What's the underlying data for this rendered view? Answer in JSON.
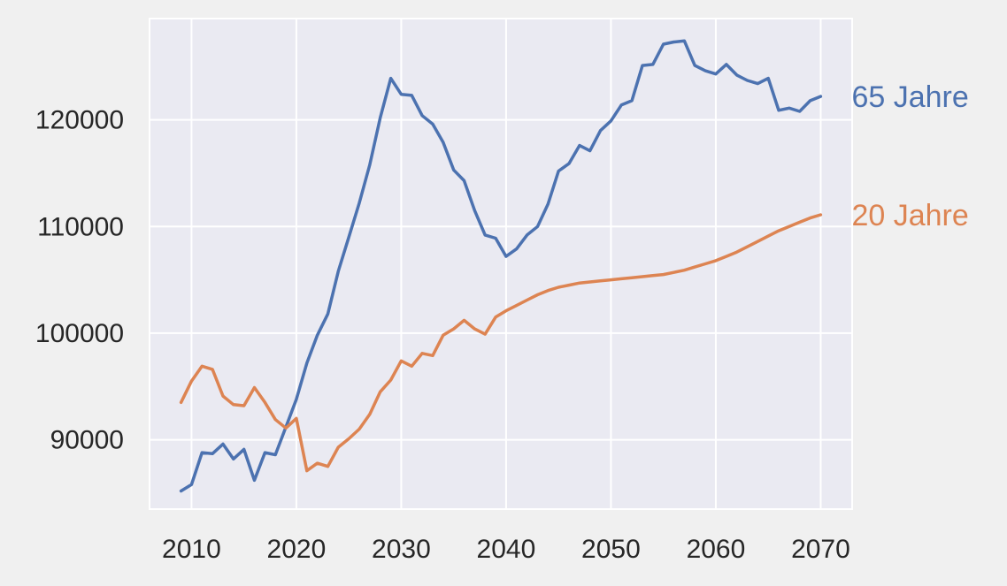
{
  "chart_data": {
    "type": "line",
    "title": "",
    "xlabel": "",
    "ylabel": "",
    "xlim": [
      2006,
      2073
    ],
    "ylim": [
      83500,
      129500
    ],
    "x_ticks": [
      2010,
      2020,
      2030,
      2040,
      2050,
      2060,
      2070
    ],
    "y_ticks": [
      90000,
      100000,
      110000,
      120000
    ],
    "x_tick_labels": [
      "2010",
      "2020",
      "2030",
      "2040",
      "2050",
      "2060",
      "2070"
    ],
    "y_tick_labels": [
      "90000",
      "100000",
      "110000",
      "120000"
    ],
    "grid": true,
    "colors": {
      "background": "#eaeaf2",
      "grid": "#ffffff",
      "page": "#f0f0f0"
    },
    "x": [
      2009,
      2010,
      2011,
      2012,
      2013,
      2014,
      2015,
      2016,
      2017,
      2018,
      2019,
      2020,
      2021,
      2022,
      2023,
      2024,
      2025,
      2026,
      2027,
      2028,
      2029,
      2030,
      2031,
      2032,
      2033,
      2034,
      2035,
      2036,
      2037,
      2038,
      2039,
      2040,
      2041,
      2042,
      2043,
      2044,
      2045,
      2046,
      2047,
      2048,
      2049,
      2050,
      2051,
      2052,
      2053,
      2054,
      2055,
      2056,
      2057,
      2058,
      2059,
      2060,
      2061,
      2062,
      2063,
      2064,
      2065,
      2066,
      2067,
      2068,
      2069,
      2070
    ],
    "series": [
      {
        "name": "65 Jahre",
        "color": "#4c72b0",
        "values": [
          85200,
          85800,
          88800,
          88700,
          89600,
          88200,
          89100,
          86200,
          88800,
          88600,
          91200,
          93800,
          97200,
          99800,
          101800,
          105800,
          109000,
          112200,
          115800,
          120200,
          123900,
          122400,
          122300,
          120400,
          119600,
          117900,
          115300,
          114300,
          111500,
          109200,
          108900,
          107200,
          107900,
          109200,
          110000,
          112100,
          115200,
          115900,
          117600,
          117100,
          119000,
          119900,
          121400,
          121800,
          125100,
          125200,
          127100,
          127300,
          127400,
          125100,
          124600,
          124300,
          125200,
          124200,
          123700,
          123400,
          123900,
          120900,
          121100,
          120800,
          121800,
          122200
        ]
      },
      {
        "name": "20 Jahre",
        "color": "#dd8452",
        "values": [
          93500,
          95500,
          96900,
          96600,
          94100,
          93300,
          93200,
          94900,
          93500,
          91900,
          91100,
          92000,
          87100,
          87800,
          87500,
          89300,
          90100,
          91000,
          92400,
          94500,
          95600,
          97400,
          96900,
          98100,
          97900,
          99800,
          100400,
          101200,
          100400,
          99900,
          101500,
          102100,
          102600,
          103100,
          103600,
          104000,
          104300,
          104500,
          104700,
          104800,
          104900,
          105000,
          105100,
          105200,
          105300,
          105400,
          105500,
          105700,
          105900,
          106200,
          106500,
          106800,
          107200,
          107600,
          108100,
          108600,
          109100,
          109600,
          110000,
          110400,
          110800,
          111100
        ]
      }
    ]
  }
}
